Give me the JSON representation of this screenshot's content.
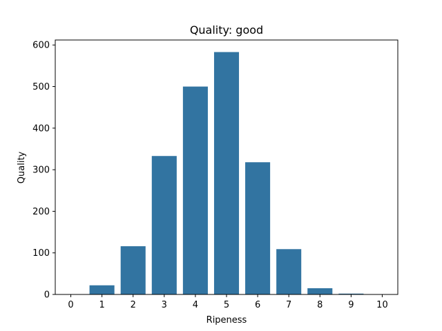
{
  "chart_data": {
    "type": "bar",
    "title": "Quality: good",
    "xlabel": "Ripeness",
    "ylabel": "Quality",
    "categories": [
      "0",
      "1",
      "2",
      "3",
      "4",
      "5",
      "6",
      "7",
      "8",
      "9",
      "10"
    ],
    "values": [
      0,
      22,
      116,
      333,
      500,
      583,
      318,
      109,
      15,
      2,
      0
    ],
    "ylim": [
      0,
      612
    ],
    "yticks": [
      0,
      100,
      200,
      300,
      400,
      500,
      600
    ],
    "grid": false,
    "bar_color": "#3274a1"
  }
}
